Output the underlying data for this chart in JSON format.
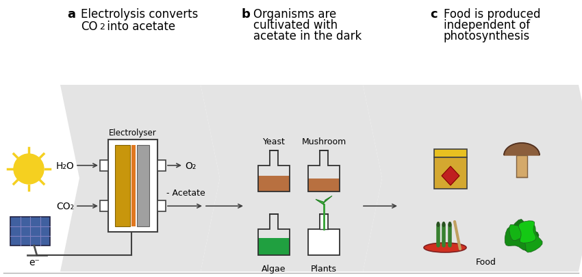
{
  "bg_color": "#ffffff",
  "section_a_label": "a",
  "section_b_label": "b",
  "section_c_label": "c",
  "electrolyser_label": "Electrolyser",
  "h2o_label": "H₂O",
  "co2_label": "CO₂",
  "o2_label": "O₂",
  "acetate_label": "Acetate",
  "electron_label": "e⁻",
  "yeast_label": "Yeast",
  "mushroom_label": "Mushroom",
  "algae_label": "Algae",
  "plants_label": "Plants",
  "food_label": "Food",
  "arrow_color": "#404040",
  "electrode_gold": "#c8960c",
  "electrode_orange": "#e07820",
  "electrode_gray": "#a0a0a0",
  "sun_color": "#f5d020",
  "solar_blue": "#4060a0",
  "yeast_flask_color": "#b87040",
  "algae_flask_color": "#20a040",
  "mushroom_flask_color": "#b87040",
  "jar_yellow": "#e8c020",
  "jar_label_red": "#c02020",
  "mushroom_cap": "#8b5e3c",
  "mushroom_stem": "#d4a96a",
  "food_green": "#40a030",
  "food_red": "#d03020"
}
